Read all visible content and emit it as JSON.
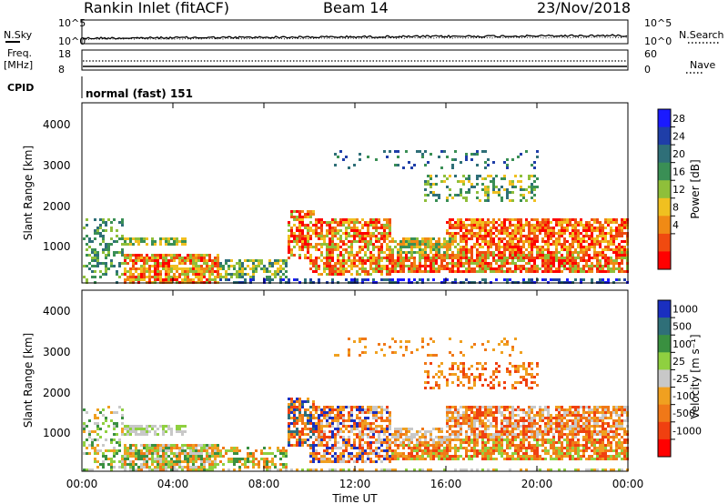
{
  "header": {
    "station": "Rankin Inlet (fitACF)",
    "beam": "Beam 14",
    "date": "23/Nov/2018"
  },
  "left_labels": {
    "nsky": "N.Sky",
    "freq": "Freq.",
    "mhz": "[MHz]",
    "cpid": "CPID"
  },
  "right_labels": {
    "nsearch": "N.Search",
    "nave": "Nave"
  },
  "cpid_text": "normal (fast) 151",
  "chart_data": [
    {
      "type": "line",
      "name": "noise",
      "y_tick_labels": [
        "10^5",
        "10^0"
      ],
      "y2_tick_labels": [
        "10^5",
        "10^0"
      ],
      "series": [
        {
          "name": "N.Sky",
          "style": "solid",
          "level": "near 10^0, slowly rising"
        },
        {
          "name": "N.Search",
          "style": "dotted",
          "level": "near 10^0"
        }
      ]
    },
    {
      "type": "line",
      "name": "frequency",
      "y_tick_labels": [
        "18",
        "8"
      ],
      "y2_tick_labels": [
        "60",
        "0"
      ],
      "series": [
        {
          "name": "Freq.",
          "style": "solid",
          "values_mhz": 10.5
        },
        {
          "name": "Nave",
          "style": "dotted",
          "values": 30
        }
      ]
    },
    {
      "type": "heatmap",
      "name": "power",
      "ylabel": "Slant Range [km]",
      "ylim": [
        180,
        4600
      ],
      "y_ticks": [
        "4000",
        "3000",
        "2000",
        "1000"
      ],
      "x_range_hours": [
        0,
        24
      ],
      "colorbar_label": "Power [dB]",
      "colorbar_ticks": [
        "28",
        "24",
        "20",
        "16",
        "12",
        "8",
        "4"
      ],
      "colors": [
        "#1a1aff",
        "#1f3ea8",
        "#2f6f78",
        "#3a8f55",
        "#8fbf3a",
        "#f0c020",
        "#f08a15",
        "#f04a10",
        "#ff0000"
      ]
    },
    {
      "type": "heatmap",
      "name": "velocity",
      "ylabel": "Slant Range [km]",
      "ylim": [
        180,
        4600
      ],
      "y_ticks": [
        "4000",
        "3000",
        "2000",
        "1000"
      ],
      "xlabel": "Time UT",
      "x_ticks": [
        "00:00",
        "04:00",
        "08:00",
        "12:00",
        "16:00",
        "20:00",
        "00:00"
      ],
      "colorbar_label": "Velocity [m s⁻¹]",
      "colorbar_ticks": [
        "1000",
        "500",
        "100",
        "25",
        "-25",
        "-100",
        "-500",
        "-1000"
      ],
      "colors": [
        "#1a2fc0",
        "#2f6f78",
        "#3a9040",
        "#8fd040",
        "#c8c8c8",
        "#f0a020",
        "#f07818",
        "#f04010",
        "#ff0000"
      ]
    }
  ]
}
